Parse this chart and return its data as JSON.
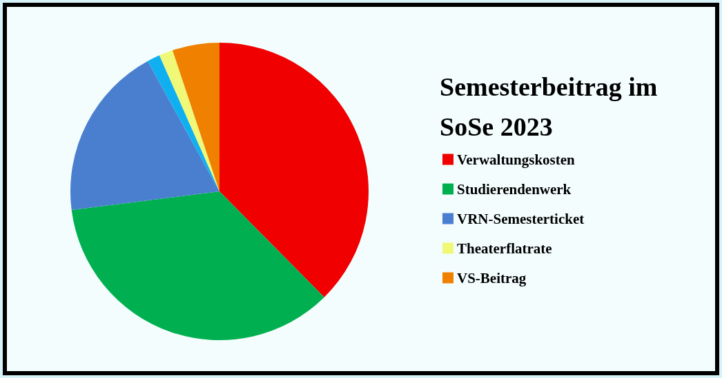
{
  "chart_data": {
    "type": "pie",
    "title": "Semesterbeitrag im SoSe 2023",
    "categories": [
      "Verwaltungskosten",
      "Studierendenwerk",
      "VRN-Semesterticket",
      null,
      "Theaterflatrate",
      "VS-Beitrag"
    ],
    "values": [
      37.6,
      35.4,
      19.0,
      1.4,
      1.5,
      5.1
    ],
    "colors": [
      "#f00000",
      "#00b050",
      "#4a7fd0",
      "#10b0f0",
      "#f0f878",
      "#f08000"
    ],
    "legend": "right"
  }
}
